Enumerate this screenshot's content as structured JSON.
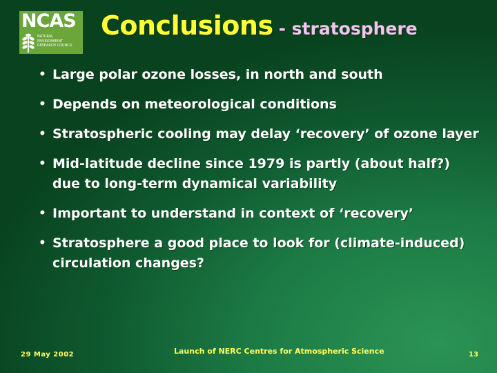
{
  "logo": {
    "word": "NCAS",
    "lines": [
      "NATURAL",
      "ENVIRONMENT",
      "RESEARCH COUNCIL"
    ],
    "background_color": "#6aa63a"
  },
  "title": {
    "main": "Conclusions",
    "sub": "- stratosphere"
  },
  "bullets": [
    "Large polar ozone losses, in north and south",
    "Depends on meteorological conditions",
    "Stratospheric cooling may delay ‘recovery’ of ozone layer",
    "Mid-latitude decline since 1979 is partly (about half?) due to long-term dynamical variability",
    "Important to understand in context of ‘recovery’",
    "Stratosphere a good place to look for (climate-induced) circulation changes?"
  ],
  "bullet_glyph": "•",
  "footer": {
    "date": "29 May 2002",
    "center": "Launch of NERC Centres for Atmospheric Science",
    "page": "13"
  },
  "colors": {
    "title": "#ffff33",
    "subtitle": "#f2c4ee",
    "body_text": "#ffffff",
    "footer_text": "#ffff66"
  }
}
